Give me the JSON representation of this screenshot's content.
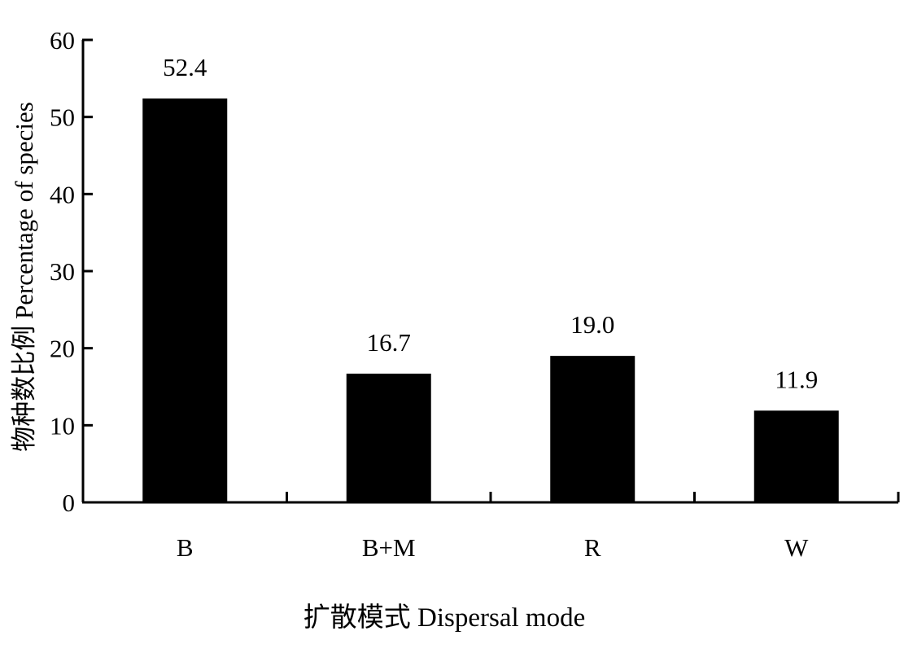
{
  "chart_data": {
    "type": "bar",
    "title": "",
    "xlabel": "扩散模式 Dispersal mode",
    "ylabel": "物种数比例 Percentage of  species",
    "categories": [
      "B",
      "B+M",
      "R",
      "W"
    ],
    "values": [
      52.4,
      16.7,
      19.0,
      11.9
    ],
    "value_labels": [
      "52.4",
      "16.7",
      "19.0",
      "11.9"
    ],
    "yticks": [
      0,
      10,
      20,
      30,
      40,
      50,
      60
    ],
    "ylim": [
      0,
      60
    ],
    "grid": false,
    "legend": "none",
    "bar_color": "#000000",
    "axis_color": "#000000"
  }
}
